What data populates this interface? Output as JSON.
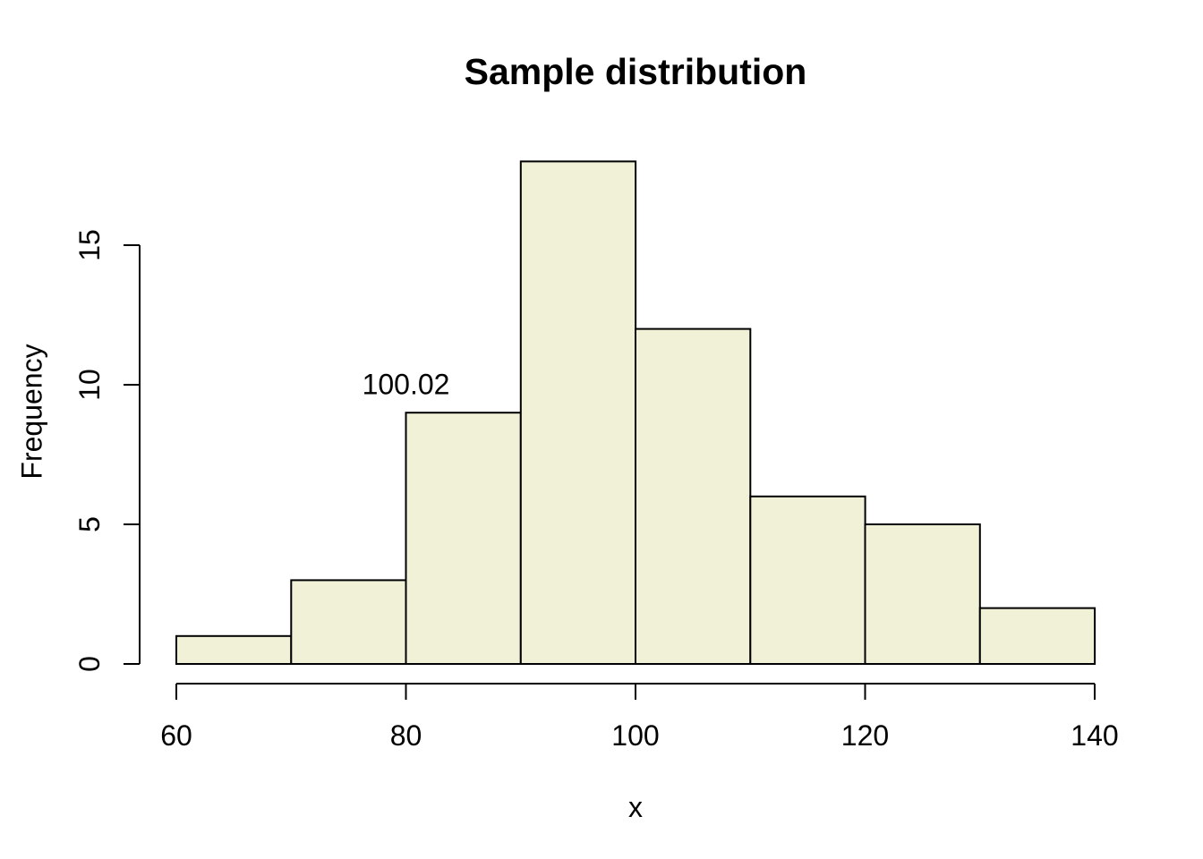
{
  "chart_data": {
    "type": "bar",
    "subtype": "histogram",
    "title": "Sample distribution",
    "xlabel": "x",
    "ylabel": "Frequency",
    "bin_edges": [
      60,
      70,
      80,
      90,
      100,
      110,
      120,
      130,
      140
    ],
    "frequencies": [
      1,
      3,
      9,
      18,
      12,
      6,
      5,
      2
    ],
    "x_ticks": [
      60,
      80,
      100,
      120,
      140
    ],
    "y_ticks": [
      0,
      5,
      10,
      15
    ],
    "xlim": [
      60,
      140
    ],
    "ylim": [
      0,
      18
    ],
    "grid": false,
    "legend": false,
    "annotation": {
      "text": "100.02",
      "x": 80,
      "y": 10
    },
    "colors": {
      "bar_fill": "#F1F1D7",
      "bar_stroke": "#000000",
      "axis": "#000000",
      "text": "#000000",
      "background": "#FFFFFF"
    }
  }
}
